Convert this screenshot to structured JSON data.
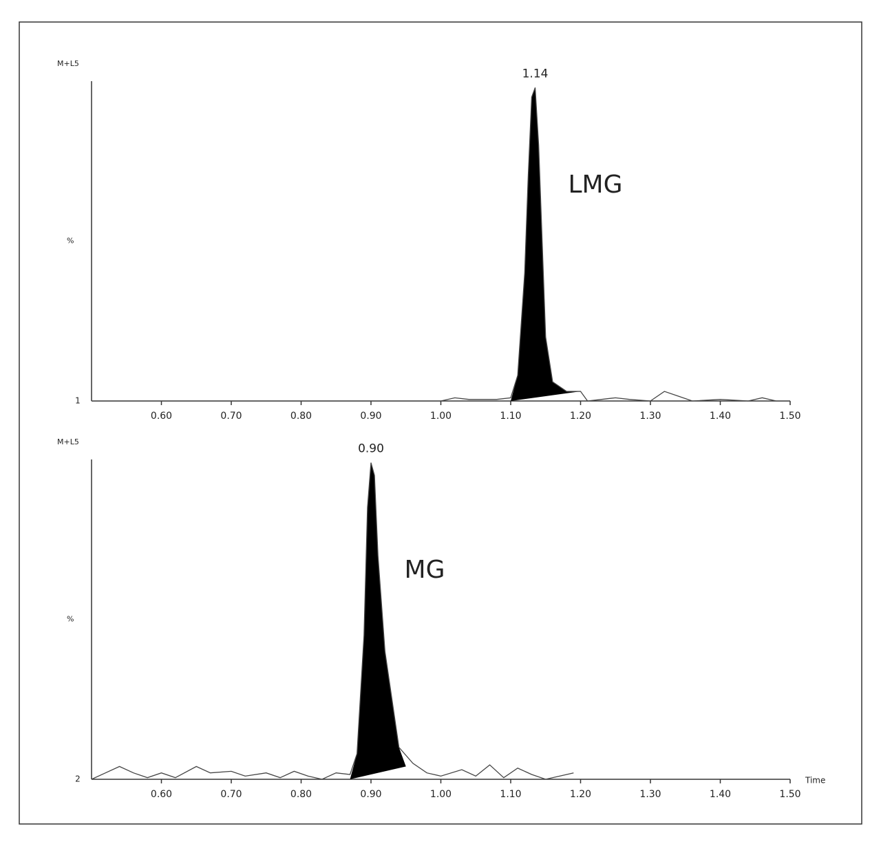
{
  "chart_data": [
    {
      "type": "line",
      "title": "M+L5",
      "ylabel": "%",
      "panel": "1",
      "peak_label": "1.14",
      "annotation": "LMG",
      "xlim": [
        0.5,
        1.5
      ],
      "ylim": [
        0,
        100
      ],
      "xticks": [
        {
          "value": 0.6,
          "label": "0.60"
        },
        {
          "value": 0.7,
          "label": "0.70"
        },
        {
          "value": 0.8,
          "label": "0.80"
        },
        {
          "value": 0.9,
          "label": "0.90"
        },
        {
          "value": 1,
          "label": "1.00"
        },
        {
          "value": 1.1,
          "label": "1.10"
        },
        {
          "value": 1.2,
          "label": "1.20"
        },
        {
          "value": 1.3,
          "label": "1.30"
        },
        {
          "value": 1.4,
          "label": "1.40"
        },
        {
          "value": 1.5,
          "label": "1.50"
        }
      ],
      "color": "#444444",
      "fill": "#000000",
      "x": [
        0.5,
        1.0,
        1.02,
        1.04,
        1.08,
        1.1,
        1.11,
        1.12,
        1.125,
        1.13,
        1.135,
        1.14,
        1.145,
        1.15,
        1.16,
        1.18,
        1.2,
        1.21,
        1.23,
        1.25,
        1.27,
        1.3,
        1.32,
        1.34,
        1.36,
        1.4,
        1.44,
        1.46,
        1.48,
        1.5
      ],
      "values": [
        0,
        0,
        1,
        0.5,
        0.5,
        1,
        8,
        40,
        70,
        95,
        98,
        80,
        50,
        20,
        6,
        3,
        3,
        0,
        0.5,
        1,
        0.5,
        0,
        3,
        1.5,
        0,
        0.5,
        0,
        1,
        0,
        0
      ],
      "peak": {
        "x": [
          1.1,
          1.11,
          1.12,
          1.125,
          1.13,
          1.135,
          1.14,
          1.145,
          1.15,
          1.16,
          1.18,
          1.2
        ],
        "values": [
          0,
          8,
          40,
          70,
          95,
          98,
          80,
          50,
          20,
          6,
          3,
          3
        ]
      }
    },
    {
      "type": "line",
      "title": "M+L5",
      "ylabel": "%",
      "panel": "2",
      "peak_label": "0.90",
      "annotation": "MG",
      "xlabel": "Time",
      "xlim": [
        0.5,
        1.5
      ],
      "ylim": [
        0,
        100
      ],
      "xticks": [
        {
          "value": 0.6,
          "label": "0.60"
        },
        {
          "value": 0.7,
          "label": "0.70"
        },
        {
          "value": 0.8,
          "label": "0.80"
        },
        {
          "value": 0.9,
          "label": "0.90"
        },
        {
          "value": 1,
          "label": "1.00"
        },
        {
          "value": 1.1,
          "label": "1.10"
        },
        {
          "value": 1.2,
          "label": "1.20"
        },
        {
          "value": 1.3,
          "label": "1.30"
        },
        {
          "value": 1.4,
          "label": "1.40"
        },
        {
          "value": 1.5,
          "label": "1.50"
        }
      ],
      "color": "#444444",
      "fill": "#000000",
      "x": [
        0.5,
        0.52,
        0.54,
        0.56,
        0.58,
        0.6,
        0.62,
        0.65,
        0.67,
        0.7,
        0.72,
        0.75,
        0.77,
        0.79,
        0.81,
        0.83,
        0.85,
        0.87,
        0.88,
        0.89,
        0.895,
        0.9,
        0.905,
        0.91,
        0.92,
        0.93,
        0.94,
        0.96,
        0.98,
        1.0,
        1.03,
        1.05,
        1.07,
        1.09,
        1.11,
        1.13,
        1.15,
        1.17,
        1.19
      ],
      "values": [
        0,
        2,
        4,
        2,
        0.5,
        2,
        0.5,
        4,
        2,
        2.5,
        1,
        2,
        0.5,
        2.5,
        1,
        0,
        2,
        1.5,
        8,
        45,
        85,
        99,
        95,
        70,
        40,
        25,
        10,
        5,
        2,
        1,
        3,
        1,
        4.5,
        0.5,
        3.5,
        1.5,
        0,
        1,
        2
      ],
      "peak": {
        "x": [
          0.87,
          0.88,
          0.89,
          0.895,
          0.9,
          0.905,
          0.91,
          0.92,
          0.93,
          0.94,
          0.95
        ],
        "values": [
          0,
          8,
          45,
          85,
          99,
          95,
          70,
          40,
          25,
          10,
          4
        ]
      }
    }
  ]
}
